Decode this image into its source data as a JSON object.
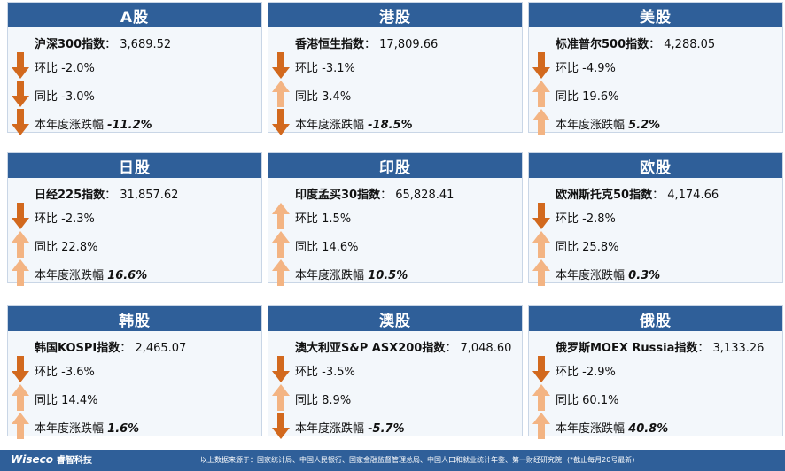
{
  "colors": {
    "header": "#2f5f99",
    "down": "#d2691e",
    "up": "#f3b483",
    "card_bg": "#f3f7fb"
  },
  "labels": {
    "mom": "环比",
    "yoy": "同比",
    "ytd": "本年度涨跌幅",
    "sep": "： "
  },
  "cards": [
    {
      "market": "A股",
      "index_name": "沪深300指数",
      "index_value": "3,689.52",
      "mom": "-2.0%",
      "mom_dir": "down",
      "yoy": "-3.0%",
      "yoy_dir": "down",
      "ytd": "-11.2%",
      "ytd_dir": "down"
    },
    {
      "market": "港股",
      "index_name": "香港恒生指数",
      "index_value": "17,809.66",
      "mom": "-3.1%",
      "mom_dir": "down",
      "yoy": "3.4%",
      "yoy_dir": "up",
      "ytd": "-18.5%",
      "ytd_dir": "down"
    },
    {
      "market": "美股",
      "index_name": "标准普尔500指数",
      "index_value": "4,288.05",
      "mom": "-4.9%",
      "mom_dir": "down",
      "yoy": "19.6%",
      "yoy_dir": "up",
      "ytd": "5.2%",
      "ytd_dir": "up"
    },
    {
      "market": "日股",
      "index_name": "日经225指数",
      "index_value": "31,857.62",
      "mom": "-2.3%",
      "mom_dir": "down",
      "yoy": "22.8%",
      "yoy_dir": "up",
      "ytd": "16.6%",
      "ytd_dir": "up"
    },
    {
      "market": "印股",
      "index_name": "印度孟买30指数",
      "index_value": "65,828.41",
      "mom": "1.5%",
      "mom_dir": "up",
      "yoy": "14.6%",
      "yoy_dir": "up",
      "ytd": "10.5%",
      "ytd_dir": "up"
    },
    {
      "market": "欧股",
      "index_name": "欧洲斯托克50指数",
      "index_value": "4,174.66",
      "mom": "-2.8%",
      "mom_dir": "down",
      "yoy": "25.8%",
      "yoy_dir": "up",
      "ytd": "0.3%",
      "ytd_dir": "up"
    },
    {
      "market": "韩股",
      "index_name": "韩国KOSPI指数",
      "index_value": "2,465.07",
      "mom": "-3.6%",
      "mom_dir": "down",
      "yoy": "14.4%",
      "yoy_dir": "up",
      "ytd": "1.6%",
      "ytd_dir": "up"
    },
    {
      "market": "澳股",
      "index_name": "澳大利亚S&P ASX200指数",
      "index_value": "7,048.60",
      "mom": "-3.5%",
      "mom_dir": "down",
      "yoy": "8.9%",
      "yoy_dir": "up",
      "ytd": "-5.7%",
      "ytd_dir": "down"
    },
    {
      "market": "俄股",
      "index_name": "俄罗斯MOEX Russia指数",
      "index_value": "3,133.26",
      "mom": "-2.9%",
      "mom_dir": "down",
      "yoy": "60.1%",
      "yoy_dir": "up",
      "ytd": "40.8%",
      "ytd_dir": "up"
    }
  ],
  "footer": {
    "logo": "Wiseco",
    "logo_cn": "睿智科技",
    "source": "以上数据来源于：国家统计局、中国人民银行、国家金融监督管理总局、中国人口和就业统计年鉴、第一财经研究院",
    "note": "(*截止每月20号最新)"
  }
}
